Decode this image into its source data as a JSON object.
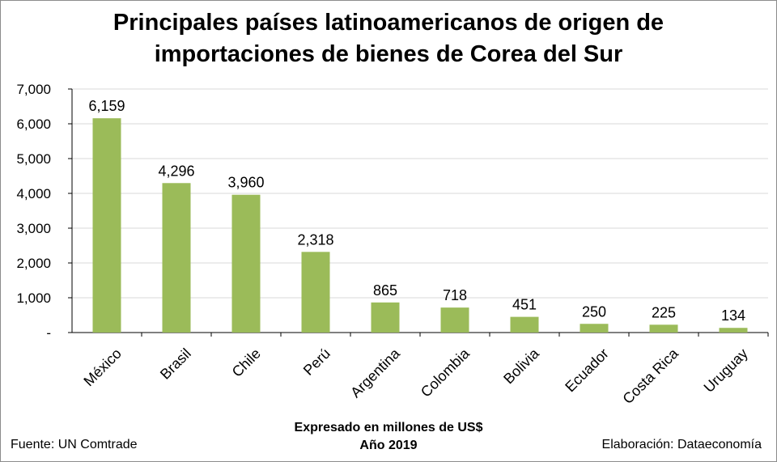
{
  "title_line1": "Principales países latinoamericanos de origen de",
  "title_line2": "importaciones de bienes de Corea del Sur",
  "subtitle_line1": "Expresado en millones de US$",
  "subtitle_line2": "Año 2019",
  "source": "Fuente: UN Comtrade",
  "credit": "Elaboración: Dataeconomía",
  "colors": {
    "bar": "#9bbb59",
    "grid": "#d9d9d9",
    "axis": "#000000"
  },
  "chart_data": {
    "type": "bar",
    "categories": [
      "México",
      "Brasil",
      "Chile",
      "Perú",
      "Argentina",
      "Colombia",
      "Bolivia",
      "Ecuador",
      "Costa Rica",
      "Uruguay"
    ],
    "values": [
      6159,
      4296,
      3960,
      2318,
      865,
      718,
      451,
      250,
      225,
      134
    ],
    "value_labels": [
      "6,159",
      "4,296",
      "3,960",
      "2,318",
      "865",
      "718",
      "451",
      "250",
      "225",
      "134"
    ],
    "ylim": [
      0,
      7000
    ],
    "yticks": [
      0,
      1000,
      2000,
      3000,
      4000,
      5000,
      6000,
      7000
    ],
    "ytick_labels": [
      "-",
      "1,000",
      "2,000",
      "3,000",
      "4,000",
      "5,000",
      "6,000",
      "7,000"
    ],
    "grid": true,
    "legend": false
  }
}
